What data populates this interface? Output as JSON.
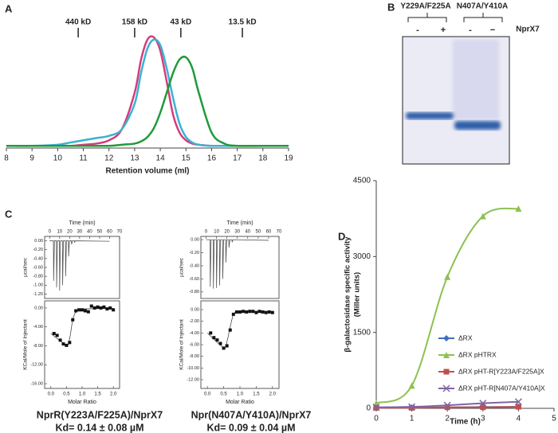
{
  "chart_data": [
    {
      "type": "line",
      "panel": "A",
      "xlabel": "Retention volume (ml)",
      "x": [
        8,
        9,
        10,
        10.5,
        11,
        11.5,
        12,
        12.5,
        13,
        13.25,
        13.5,
        13.75,
        14,
        14.25,
        14.5,
        14.75,
        15,
        15.25,
        15.5,
        16,
        16.5,
        17,
        18,
        19
      ],
      "xlim": [
        8,
        19
      ],
      "xticks": [
        8,
        9,
        10,
        11,
        12,
        13,
        14,
        15,
        16,
        17,
        18,
        19
      ],
      "ylim": [
        0,
        1.05
      ],
      "smooth": true,
      "markers": [
        {
          "value": 10.8,
          "label": "440 kD"
        },
        {
          "value": 13,
          "label": "158 kD"
        },
        {
          "value": 14.8,
          "label": "43 kD"
        },
        {
          "value": 17.2,
          "label": "13.5 kD"
        }
      ],
      "series": [
        {
          "color": "#d63c7c",
          "values": [
            0.02,
            0.02,
            0.02,
            0.02,
            0.03,
            0.04,
            0.07,
            0.17,
            0.5,
            0.8,
            0.98,
            1.0,
            0.88,
            0.6,
            0.3,
            0.14,
            0.07,
            0.04,
            0.03,
            0.02,
            0.02,
            0.02,
            0.02,
            0.02
          ]
        },
        {
          "color": "#3bb2d2",
          "values": [
            0.02,
            0.02,
            0.03,
            0.05,
            0.07,
            0.09,
            0.11,
            0.17,
            0.4,
            0.68,
            0.9,
            0.98,
            0.93,
            0.72,
            0.45,
            0.22,
            0.1,
            0.05,
            0.03,
            0.02,
            0.02,
            0.02,
            0.02,
            0.02
          ]
        },
        {
          "color": "#1f9a3a",
          "values": [
            0.02,
            0.02,
            0.02,
            0.02,
            0.02,
            0.02,
            0.02,
            0.03,
            0.04,
            0.06,
            0.1,
            0.18,
            0.32,
            0.5,
            0.68,
            0.8,
            0.82,
            0.72,
            0.5,
            0.14,
            0.04,
            0.02,
            0.02,
            0.02
          ]
        }
      ]
    },
    {
      "type": "itc",
      "panel": "C",
      "title": "NprR(Y223A/F225A)/NprX7",
      "subtitle": "Kd= 0.14 ± 0.08 µM",
      "raw": {
        "xlabel": "Time (min)",
        "ylabel": "µcal/sec",
        "xlim": [
          -5,
          70
        ],
        "xticks": [
          0,
          10,
          20,
          30,
          40,
          50,
          60,
          70
        ],
        "ylim": [
          -1.3,
          0.1
        ],
        "yticks": [
          {
            "value": 0,
            "label": "0.00"
          },
          {
            "value": -0.2,
            "label": "-0.20"
          },
          {
            "value": -0.4,
            "label": "-0.40"
          },
          {
            "value": -0.6,
            "label": "-0.60"
          },
          {
            "value": -0.8,
            "label": "-0.80"
          },
          {
            "value": -1.0,
            "label": "-1.00"
          },
          {
            "value": -1.2,
            "label": "-1.20"
          }
        ],
        "x": [
          0,
          3.8,
          4,
          4.8,
          6.8,
          7,
          7.8,
          9.8,
          10,
          10.8,
          12.8,
          13,
          13.8,
          15.8,
          16,
          16.8,
          18.8,
          19,
          19.8,
          21.8,
          22,
          22.8,
          24.8,
          25,
          25.8,
          60
        ],
        "values": [
          0,
          0,
          -0.9,
          0,
          0,
          -1.05,
          0,
          0,
          -1.12,
          0,
          0,
          -1.0,
          0,
          0,
          -0.8,
          0,
          0,
          -0.35,
          0,
          0,
          -0.08,
          0,
          0,
          -0.03,
          0,
          -0.01
        ]
      },
      "binding": {
        "xlabel": "Molar Ratio",
        "ylabel": "KCal/Mole of Injectant",
        "xlim": [
          -0.2,
          2.2
        ],
        "xticks": [
          {
            "value": 0,
            "label": "0.0"
          },
          0.5,
          {
            "value": 1,
            "label": "1.0"
          },
          1.5,
          {
            "value": 2,
            "label": "2.0"
          }
        ],
        "ylim": [
          -17,
          1.5
        ],
        "yticks": [
          {
            "value": 0,
            "label": "0.00"
          },
          {
            "value": -4,
            "label": "-4.00"
          },
          {
            "value": -8,
            "label": "-8.00"
          },
          {
            "value": -12,
            "label": "-12.00"
          },
          {
            "value": -16,
            "label": "-16.00"
          }
        ],
        "x": [
          0.1,
          0.2,
          0.3,
          0.4,
          0.5,
          0.6,
          0.7,
          0.8,
          0.9,
          1.0,
          1.1,
          1.2,
          1.3,
          1.4,
          1.5,
          1.6,
          1.7,
          1.8,
          1.9,
          2.0
        ],
        "values": [
          -5.4,
          -5.8,
          -6.8,
          -7.6,
          -7.9,
          -7.3,
          -2.5,
          -0.6,
          -0.4,
          -0.4,
          -0.6,
          -0.8,
          0.4,
          0,
          0.2,
          0,
          0.2,
          -0.2,
          0,
          -0.4
        ],
        "fit_x": [
          0,
          0.5,
          0.6,
          0.7,
          0.8,
          0.9,
          1.0,
          2.0
        ],
        "fit": [
          -5.4,
          -7.8,
          -6.5,
          -2.5,
          -0.8,
          -0.3,
          -0.2,
          -0.1
        ]
      }
    },
    {
      "type": "itc",
      "title": "Npr(N407A/Y410A)/NprX7",
      "subtitle": "Kd= 0.09 ± 0.04 µM",
      "raw": {
        "xlabel": "Time (min)",
        "ylabel": "µcal/sec",
        "xlim": [
          -5,
          70
        ],
        "xticks": [
          0,
          10,
          20,
          30,
          40,
          50,
          60,
          70
        ],
        "ylim": [
          -0.9,
          0.05
        ],
        "yticks": [
          {
            "value": 0,
            "label": "0.00"
          },
          {
            "value": -0.2,
            "label": "-0.20"
          },
          {
            "value": -0.4,
            "label": "-0.40"
          },
          {
            "value": -0.6,
            "label": "-0.60"
          },
          {
            "value": -0.8,
            "label": "-0.80"
          }
        ],
        "x": [
          0,
          3.8,
          4,
          4.8,
          6.8,
          7,
          7.8,
          9.8,
          10,
          10.8,
          12.8,
          13,
          13.8,
          15.8,
          16,
          16.8,
          18.8,
          19,
          19.8,
          21.8,
          22,
          22.8,
          24.8,
          25,
          25.8,
          60
        ],
        "values": [
          0,
          0,
          -0.72,
          0,
          0,
          -0.75,
          0,
          0,
          -0.74,
          0,
          0,
          -0.7,
          0,
          0,
          -0.6,
          0,
          0,
          -0.35,
          0,
          0,
          -0.12,
          0,
          0,
          -0.04,
          0,
          -0.01
        ]
      },
      "binding": {
        "xlabel": "Molar Ratio",
        "ylabel": "KCal/Mole of Injectant",
        "xlim": [
          -0.2,
          2.2
        ],
        "xticks": [
          {
            "value": 0,
            "label": "0.0"
          },
          0.5,
          {
            "value": 1,
            "label": "1.0"
          },
          1.5,
          {
            "value": 2,
            "label": "2.0"
          }
        ],
        "ylim": [
          -13.5,
          1.5
        ],
        "yticks": [
          {
            "value": 0,
            "label": "0.00"
          },
          {
            "value": -2,
            "label": "-2.00"
          },
          {
            "value": -4,
            "label": "-4.00"
          },
          {
            "value": -6,
            "label": "-6.00"
          },
          {
            "value": -8,
            "label": "-8.00"
          },
          {
            "value": -10,
            "label": "-10.00"
          },
          {
            "value": -12,
            "label": "-12.00"
          }
        ],
        "x": [
          0.1,
          0.2,
          0.3,
          0.4,
          0.5,
          0.6,
          0.7,
          0.8,
          0.9,
          1.0,
          1.1,
          1.2,
          1.3,
          1.4,
          1.5,
          1.6,
          1.7,
          1.8,
          1.9,
          2.0
        ],
        "values": [
          -4.0,
          -4.8,
          -5.2,
          -5.8,
          -6.6,
          -6.2,
          -3.5,
          -0.8,
          -0.4,
          -0.4,
          -0.3,
          -0.4,
          -0.3,
          -0.3,
          -0.5,
          -0.3,
          -0.4,
          -0.5,
          -0.4,
          -0.5
        ],
        "fit_x": [
          0,
          0.5,
          0.6,
          0.7,
          0.8,
          0.9,
          1.0,
          2.0
        ],
        "fit": [
          -4.0,
          -6.5,
          -5.5,
          -3.0,
          -0.8,
          -0.4,
          -0.3,
          -0.3
        ]
      }
    },
    {
      "type": "line",
      "panel": "D",
      "xlabel": "Time (h)",
      "ylabel": [
        "β-galactosidase specific activity",
        "(Miller units)"
      ],
      "x": [
        0,
        1,
        2,
        3,
        4
      ],
      "xlim": [
        0,
        5
      ],
      "xticks": [
        0,
        1,
        2,
        3,
        4,
        5
      ],
      "ylim": [
        0,
        4500
      ],
      "yticks": [
        0,
        1500,
        3000,
        4500
      ],
      "smooth": true,
      "legend": "right",
      "series": [
        {
          "name": "ΔRX",
          "color": "#3a6fc4",
          "marker": "diamond",
          "values": [
            10,
            15,
            20,
            25,
            30
          ]
        },
        {
          "name": "ΔRX pHTRX",
          "color": "#8cc152",
          "marker": "triangle",
          "values": [
            100,
            450,
            2600,
            3800,
            3950
          ]
        },
        {
          "name": "ΔRX pHT-R[Y223A/F225A]X",
          "color": "#c0504d",
          "marker": "square",
          "values": [
            10,
            10,
            20,
            20,
            30
          ]
        },
        {
          "name": "ΔRX pHT-R[N407A/Y410A]X",
          "color": "#8064a2",
          "marker": "x",
          "values": [
            20,
            30,
            60,
            100,
            130
          ]
        }
      ]
    }
  ],
  "panel_b": {
    "panel": "B",
    "mutants": [
      "Y229A/F225A",
      "N407A/Y410A"
    ],
    "lanes": [
      "-",
      "+",
      "-",
      "−"
    ],
    "ligand": "NprX7"
  }
}
